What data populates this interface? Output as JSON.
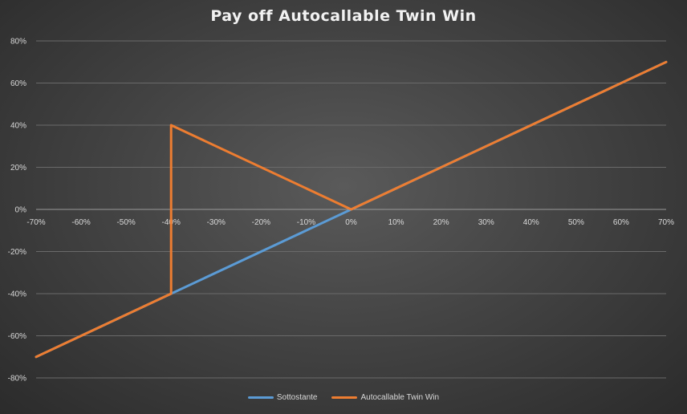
{
  "chart_data": {
    "type": "line",
    "title": "Pay off Autocallable Twin Win",
    "xlabel": "",
    "ylabel": "",
    "xlim": [
      -0.7,
      0.7
    ],
    "ylim": [
      -0.8,
      0.8
    ],
    "x_ticks": [
      -0.7,
      -0.6,
      -0.5,
      -0.4,
      -0.3,
      -0.2,
      -0.1,
      0,
      0.1,
      0.2,
      0.3,
      0.4,
      0.5,
      0.6,
      0.7
    ],
    "x_tick_labels": [
      "-70%",
      "-60%",
      "-50%",
      "-40%",
      "-30%",
      "-20%",
      "-10%",
      "0%",
      "10%",
      "20%",
      "30%",
      "40%",
      "50%",
      "60%",
      "70%"
    ],
    "y_ticks": [
      0.8,
      0.6,
      0.4,
      0.2,
      0,
      -0.2,
      -0.4,
      -0.6,
      -0.8
    ],
    "y_tick_labels": [
      "80%",
      "60%",
      "40%",
      "20%",
      "0%",
      "-20%",
      "-40%",
      "-60%",
      "-80%"
    ],
    "grid": true,
    "legend_position": "bottom",
    "series": [
      {
        "name": "Sottostante",
        "color": "#5b9bd5",
        "x": [
          -0.7,
          0.7
        ],
        "y": [
          -0.7,
          0.7
        ]
      },
      {
        "name": "Autocallable Twin Win",
        "color": "#ed7d31",
        "x": [
          -0.7,
          -0.4,
          -0.4,
          0,
          0.7
        ],
        "y": [
          -0.7,
          -0.4,
          0.4,
          0,
          0.7
        ]
      }
    ]
  }
}
